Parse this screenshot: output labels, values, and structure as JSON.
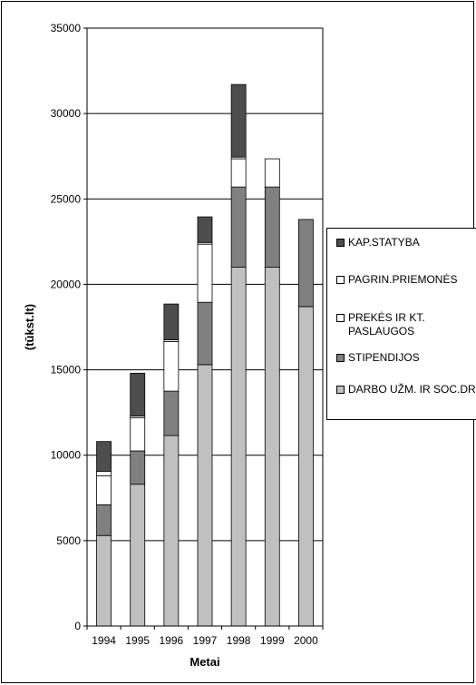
{
  "chart_data": {
    "type": "bar",
    "stacked": true,
    "categories": [
      "1994",
      "1995",
      "1996",
      "1997",
      "1998",
      "1999",
      "2000"
    ],
    "series": [
      {
        "name": "DARBO UŽM. IR SOC.DR.",
        "color": "#c0c0c0",
        "values": [
          5300,
          8300,
          11150,
          15300,
          21000,
          21000,
          18700
        ]
      },
      {
        "name": "STIPENDIJOS",
        "color": "#808080",
        "values": [
          1800,
          1950,
          2600,
          3650,
          4700,
          4700,
          5100
        ]
      },
      {
        "name": "PREKĖS IR KT. PASLAUGOS",
        "color": "#ffffff",
        "values": [
          1700,
          1950,
          2900,
          3400,
          1650,
          1650,
          0
        ]
      },
      {
        "name": "PAGRIN.PRIEMONĖS",
        "color": "#ffffff",
        "values": [
          250,
          100,
          100,
          100,
          100,
          0,
          0
        ]
      },
      {
        "name": "KAP.STATYBA",
        "color": "#4d4d4d",
        "values": [
          1750,
          2500,
          2100,
          1500,
          4250,
          0,
          0
        ]
      }
    ],
    "legend_order": [
      "KAP.STATYBA",
      "PAGRIN.PRIEMONĖS",
      "PREKĖS IR KT. PASLAUGOS",
      "STIPENDIJOS",
      "DARBO UŽM. IR SOC.DR."
    ],
    "xlabel": "Metai",
    "ylabel": "(tūkst.lt)",
    "ylim": [
      0,
      35000
    ],
    "yticks": [
      0,
      5000,
      10000,
      15000,
      20000,
      25000,
      30000,
      35000
    ],
    "grid": true,
    "legend_position": "right"
  }
}
